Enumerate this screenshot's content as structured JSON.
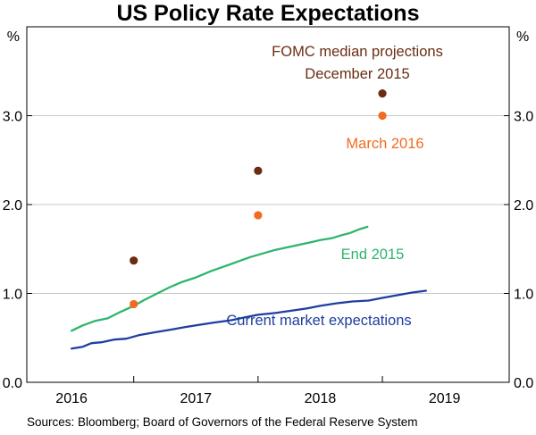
{
  "chart_data": {
    "type": "line",
    "title": "US Policy Rate Expectations",
    "unit_left": "%",
    "unit_right": "%",
    "ylim": [
      0,
      4
    ],
    "y_ticks": [
      "0.0",
      "1.0",
      "2.0",
      "3.0"
    ],
    "y_tick_values": [
      0,
      1,
      2,
      3
    ],
    "x_domain": [
      2015.6,
      2019.48
    ],
    "x_ticks": [
      "2016",
      "2017",
      "2018",
      "2019"
    ],
    "x_tick_values": [
      2015.96,
      2016.96,
      2017.96,
      2018.96
    ],
    "x_boundaries": [
      2016.46,
      2017.46,
      2018.46
    ],
    "series": [
      {
        "name": "Current market expectations",
        "color": "#1f3ea0",
        "label": "Current market expectations",
        "x": [
          2015.96,
          2016.05,
          2016.12,
          2016.2,
          2016.3,
          2016.4,
          2016.5,
          2016.62,
          2016.75,
          2016.87,
          2016.96,
          2017.1,
          2017.25,
          2017.35,
          2017.46,
          2017.6,
          2017.75,
          2017.85,
          2017.96,
          2018.1,
          2018.22,
          2018.35,
          2018.46,
          2018.58,
          2018.7,
          2018.81
        ],
        "values": [
          0.38,
          0.4,
          0.44,
          0.45,
          0.48,
          0.49,
          0.53,
          0.56,
          0.59,
          0.62,
          0.64,
          0.67,
          0.7,
          0.73,
          0.76,
          0.78,
          0.81,
          0.83,
          0.86,
          0.89,
          0.91,
          0.92,
          0.95,
          0.98,
          1.01,
          1.03
        ]
      },
      {
        "name": "End 2015",
        "color": "#2db56e",
        "label": "End 2015",
        "x": [
          2015.96,
          2016.05,
          2016.15,
          2016.25,
          2016.35,
          2016.46,
          2016.55,
          2016.65,
          2016.75,
          2016.85,
          2016.96,
          2017.08,
          2017.2,
          2017.3,
          2017.4,
          2017.5,
          2017.6,
          2017.7,
          2017.8,
          2017.9,
          2017.96,
          2018.05,
          2018.12,
          2018.2,
          2018.27,
          2018.34
        ],
        "values": [
          0.58,
          0.64,
          0.69,
          0.72,
          0.79,
          0.86,
          0.93,
          1.0,
          1.07,
          1.13,
          1.18,
          1.25,
          1.31,
          1.36,
          1.41,
          1.45,
          1.49,
          1.52,
          1.55,
          1.58,
          1.6,
          1.62,
          1.65,
          1.68,
          1.72,
          1.75
        ]
      }
    ],
    "points": [
      {
        "name": "FOMC median projections December 2015",
        "color": "#6b2d12",
        "x": [
          2016.46,
          2017.46,
          2018.46
        ],
        "values": [
          1.37,
          2.38,
          3.25
        ]
      },
      {
        "name": "March 2016",
        "color": "#f26b21",
        "x": [
          2016.46,
          2017.46,
          2018.46
        ],
        "values": [
          0.88,
          1.88,
          3.0
        ]
      }
    ],
    "annotations": {
      "fomc_line1": "FOMC median projections",
      "fomc_line2": "December 2015",
      "march": "March 2016",
      "end2015": "End 2015",
      "current": "Current market expectations"
    }
  },
  "source": "Sources:   Bloomberg; Board of Governors of the Federal Reserve System"
}
